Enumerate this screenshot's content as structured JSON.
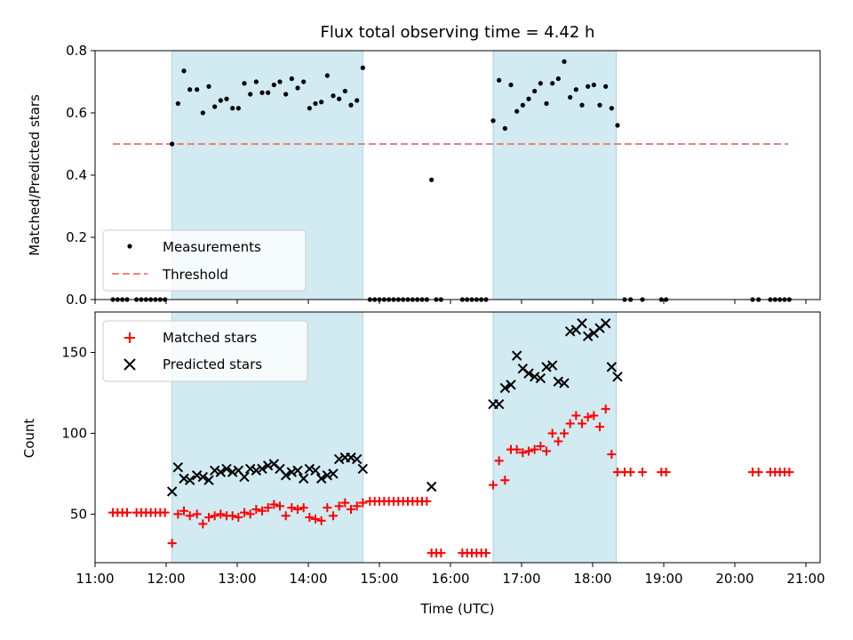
{
  "chart_data": {
    "type": "scatter",
    "title": "Flux total observing time = 4.42 h",
    "xlabel": "Time (UTC)",
    "x_unit": "hours UTC",
    "xlim": [
      "11:00",
      "21:12"
    ],
    "xticks": [
      "11:00",
      "12:00",
      "13:00",
      "14:00",
      "15:00",
      "16:00",
      "17:00",
      "18:00",
      "19:00",
      "20:00",
      "21:00"
    ],
    "shaded_intervals": [
      [
        "12:05",
        "14:46"
      ],
      [
        "16:36",
        "18:20"
      ]
    ],
    "shade_color": "#add8e6",
    "top_panel": {
      "ylabel": "Matched/Predicted stars",
      "ylim": [
        0,
        0.8
      ],
      "yticks": [
        "0.0",
        "0.2",
        "0.4",
        "0.6",
        "0.8"
      ],
      "legend": {
        "position": "lower left",
        "entries": [
          "Measurements",
          "Threshold"
        ]
      },
      "threshold": {
        "name": "Threshold",
        "value": 0.5,
        "x_range": [
          "11:15",
          "20:45"
        ],
        "color": "#f08080",
        "style": "dashed"
      },
      "measurements": {
        "name": "Measurements",
        "color": "#000000",
        "points": [
          [
            "11:15",
            0.0
          ],
          [
            "11:19",
            0.0
          ],
          [
            "11:23",
            0.0
          ],
          [
            "11:27",
            0.0
          ],
          [
            "11:35",
            0.0
          ],
          [
            "11:39",
            0.0
          ],
          [
            "11:43",
            0.0
          ],
          [
            "11:47",
            0.0
          ],
          [
            "11:51",
            0.0
          ],
          [
            "11:55",
            0.0
          ],
          [
            "11:59",
            0.0
          ],
          [
            "12:05",
            0.5
          ],
          [
            "12:10",
            0.63
          ],
          [
            "12:15",
            0.735
          ],
          [
            "12:20",
            0.675
          ],
          [
            "12:26",
            0.675
          ],
          [
            "12:31",
            0.6
          ],
          [
            "12:36",
            0.685
          ],
          [
            "12:41",
            0.62
          ],
          [
            "12:46",
            0.64
          ],
          [
            "12:51",
            0.645
          ],
          [
            "12:56",
            0.615
          ],
          [
            "13:01",
            0.615
          ],
          [
            "13:06",
            0.695
          ],
          [
            "13:11",
            0.66
          ],
          [
            "13:16",
            0.7
          ],
          [
            "13:21",
            0.665
          ],
          [
            "13:26",
            0.665
          ],
          [
            "13:31",
            0.69
          ],
          [
            "13:36",
            0.7
          ],
          [
            "13:41",
            0.66
          ],
          [
            "13:46",
            0.71
          ],
          [
            "13:51",
            0.68
          ],
          [
            "13:56",
            0.7
          ],
          [
            "14:01",
            0.615
          ],
          [
            "14:06",
            0.63
          ],
          [
            "14:11",
            0.635
          ],
          [
            "14:16",
            0.72
          ],
          [
            "14:21",
            0.655
          ],
          [
            "14:26",
            0.645
          ],
          [
            "14:31",
            0.67
          ],
          [
            "14:36",
            0.625
          ],
          [
            "14:41",
            0.64
          ],
          [
            "14:46",
            0.745
          ],
          [
            "14:52",
            0.0
          ],
          [
            "14:56",
            0.0
          ],
          [
            "15:00",
            0.0
          ],
          [
            "15:04",
            0.0
          ],
          [
            "15:08",
            0.0
          ],
          [
            "15:12",
            0.0
          ],
          [
            "15:16",
            0.0
          ],
          [
            "15:20",
            0.0
          ],
          [
            "15:24",
            0.0
          ],
          [
            "15:28",
            0.0
          ],
          [
            "15:32",
            0.0
          ],
          [
            "15:36",
            0.0
          ],
          [
            "15:40",
            0.0
          ],
          [
            "15:44",
            0.385
          ],
          [
            "15:48",
            0.0
          ],
          [
            "15:52",
            0.0
          ],
          [
            "16:10",
            0.0
          ],
          [
            "16:14",
            0.0
          ],
          [
            "16:18",
            0.0
          ],
          [
            "16:22",
            0.0
          ],
          [
            "16:26",
            0.0
          ],
          [
            "16:30",
            0.0
          ],
          [
            "16:36",
            0.575
          ],
          [
            "16:41",
            0.705
          ],
          [
            "16:46",
            0.55
          ],
          [
            "16:51",
            0.69
          ],
          [
            "16:56",
            0.605
          ],
          [
            "17:01",
            0.625
          ],
          [
            "17:06",
            0.645
          ],
          [
            "17:11",
            0.67
          ],
          [
            "17:16",
            0.695
          ],
          [
            "17:21",
            0.63
          ],
          [
            "17:26",
            0.695
          ],
          [
            "17:31",
            0.71
          ],
          [
            "17:36",
            0.765
          ],
          [
            "17:41",
            0.65
          ],
          [
            "17:46",
            0.675
          ],
          [
            "17:51",
            0.625
          ],
          [
            "17:56",
            0.685
          ],
          [
            "18:01",
            0.69
          ],
          [
            "18:06",
            0.625
          ],
          [
            "18:11",
            0.685
          ],
          [
            "18:16",
            0.615
          ],
          [
            "18:21",
            0.56
          ],
          [
            "18:27",
            0.0
          ],
          [
            "18:32",
            0.0
          ],
          [
            "18:42",
            0.0
          ],
          [
            "18:58",
            0.0
          ],
          [
            "19:02",
            0.0
          ],
          [
            "20:15",
            0.0
          ],
          [
            "20:20",
            0.0
          ],
          [
            "20:30",
            0.0
          ],
          [
            "20:34",
            0.0
          ],
          [
            "20:38",
            0.0
          ],
          [
            "20:42",
            0.0
          ],
          [
            "20:46",
            0.0
          ]
        ]
      }
    },
    "bottom_panel": {
      "ylabel": "Count",
      "ylim": [
        20,
        175
      ],
      "yticks": [
        "50",
        "100",
        "150"
      ],
      "legend": {
        "position": "upper left",
        "entries": [
          "Matched stars",
          "Predicted stars"
        ]
      },
      "matched": {
        "name": "Matched stars",
        "color": "#ff0000",
        "marker": "plus",
        "points": [
          [
            "11:15",
            51
          ],
          [
            "11:19",
            51
          ],
          [
            "11:23",
            51
          ],
          [
            "11:27",
            51
          ],
          [
            "11:35",
            51
          ],
          [
            "11:39",
            51
          ],
          [
            "11:43",
            51
          ],
          [
            "11:47",
            51
          ],
          [
            "11:51",
            51
          ],
          [
            "11:55",
            51
          ],
          [
            "11:59",
            51
          ],
          [
            "12:05",
            32
          ],
          [
            "12:10",
            50
          ],
          [
            "12:15",
            52
          ],
          [
            "12:20",
            49
          ],
          [
            "12:26",
            50
          ],
          [
            "12:31",
            44
          ],
          [
            "12:36",
            48
          ],
          [
            "12:41",
            49
          ],
          [
            "12:46",
            50
          ],
          [
            "12:51",
            49
          ],
          [
            "12:56",
            49
          ],
          [
            "13:01",
            48
          ],
          [
            "13:06",
            51
          ],
          [
            "13:11",
            50
          ],
          [
            "13:16",
            53
          ],
          [
            "13:21",
            52
          ],
          [
            "13:26",
            54
          ],
          [
            "13:31",
            56
          ],
          [
            "13:36",
            55
          ],
          [
            "13:41",
            49
          ],
          [
            "13:46",
            54
          ],
          [
            "13:51",
            53
          ],
          [
            "13:56",
            54
          ],
          [
            "14:01",
            48
          ],
          [
            "14:06",
            47
          ],
          [
            "14:11",
            46
          ],
          [
            "14:16",
            54
          ],
          [
            "14:21",
            49
          ],
          [
            "14:26",
            55
          ],
          [
            "14:31",
            57
          ],
          [
            "14:36",
            53
          ],
          [
            "14:41",
            55
          ],
          [
            "14:46",
            57
          ],
          [
            "14:52",
            58
          ],
          [
            "14:56",
            58
          ],
          [
            "15:00",
            58
          ],
          [
            "15:04",
            58
          ],
          [
            "15:08",
            58
          ],
          [
            "15:12",
            58
          ],
          [
            "15:16",
            58
          ],
          [
            "15:20",
            58
          ],
          [
            "15:24",
            58
          ],
          [
            "15:28",
            58
          ],
          [
            "15:32",
            58
          ],
          [
            "15:36",
            58
          ],
          [
            "15:40",
            58
          ],
          [
            "15:44",
            26
          ],
          [
            "15:48",
            26
          ],
          [
            "15:52",
            26
          ],
          [
            "16:10",
            26
          ],
          [
            "16:14",
            26
          ],
          [
            "16:18",
            26
          ],
          [
            "16:22",
            26
          ],
          [
            "16:26",
            26
          ],
          [
            "16:30",
            26
          ],
          [
            "16:36",
            68
          ],
          [
            "16:41",
            83
          ],
          [
            "16:46",
            71
          ],
          [
            "16:51",
            90
          ],
          [
            "16:56",
            90
          ],
          [
            "17:01",
            88
          ],
          [
            "17:06",
            89
          ],
          [
            "17:11",
            90
          ],
          [
            "17:16",
            92
          ],
          [
            "17:21",
            89
          ],
          [
            "17:26",
            100
          ],
          [
            "17:31",
            95
          ],
          [
            "17:36",
            100
          ],
          [
            "17:41",
            106
          ],
          [
            "17:46",
            111
          ],
          [
            "17:51",
            106
          ],
          [
            "17:56",
            110
          ],
          [
            "18:01",
            111
          ],
          [
            "18:06",
            104
          ],
          [
            "18:11",
            115
          ],
          [
            "18:16",
            87
          ],
          [
            "18:21",
            76
          ],
          [
            "18:27",
            76
          ],
          [
            "18:32",
            76
          ],
          [
            "18:42",
            76
          ],
          [
            "18:58",
            76
          ],
          [
            "19:02",
            76
          ],
          [
            "20:15",
            76
          ],
          [
            "20:20",
            76
          ],
          [
            "20:30",
            76
          ],
          [
            "20:34",
            76
          ],
          [
            "20:38",
            76
          ],
          [
            "20:42",
            76
          ],
          [
            "20:46",
            76
          ]
        ]
      },
      "predicted": {
        "name": "Predicted stars",
        "color": "#000000",
        "marker": "x",
        "points": [
          [
            "12:05",
            64
          ],
          [
            "12:10",
            79
          ],
          [
            "12:15",
            72
          ],
          [
            "12:20",
            71
          ],
          [
            "12:26",
            74
          ],
          [
            "12:31",
            73
          ],
          [
            "12:36",
            71
          ],
          [
            "12:41",
            77
          ],
          [
            "12:46",
            76
          ],
          [
            "12:51",
            78
          ],
          [
            "12:56",
            76
          ],
          [
            "13:01",
            77
          ],
          [
            "13:06",
            73
          ],
          [
            "13:11",
            78
          ],
          [
            "13:16",
            77
          ],
          [
            "13:21",
            78
          ],
          [
            "13:26",
            80
          ],
          [
            "13:31",
            81
          ],
          [
            "13:36",
            78
          ],
          [
            "13:41",
            74
          ],
          [
            "13:46",
            76
          ],
          [
            "13:51",
            77
          ],
          [
            "13:56",
            72
          ],
          [
            "14:01",
            78
          ],
          [
            "14:06",
            77
          ],
          [
            "14:11",
            72
          ],
          [
            "14:16",
            74
          ],
          [
            "14:21",
            75
          ],
          [
            "14:26",
            84
          ],
          [
            "14:31",
            85
          ],
          [
            "14:36",
            85
          ],
          [
            "14:41",
            84
          ],
          [
            "14:46",
            78
          ],
          [
            "15:44",
            67
          ],
          [
            "16:36",
            118
          ],
          [
            "16:41",
            118
          ],
          [
            "16:46",
            128
          ],
          [
            "16:51",
            130
          ],
          [
            "16:56",
            148
          ],
          [
            "17:01",
            140
          ],
          [
            "17:06",
            137
          ],
          [
            "17:11",
            135
          ],
          [
            "17:16",
            134
          ],
          [
            "17:21",
            141
          ],
          [
            "17:26",
            142
          ],
          [
            "17:31",
            132
          ],
          [
            "17:36",
            131
          ],
          [
            "17:41",
            163
          ],
          [
            "17:46",
            164
          ],
          [
            "17:51",
            168
          ],
          [
            "17:56",
            160
          ],
          [
            "18:01",
            162
          ],
          [
            "18:06",
            165
          ],
          [
            "18:11",
            168
          ],
          [
            "18:16",
            141
          ],
          [
            "18:21",
            135
          ]
        ]
      }
    }
  }
}
